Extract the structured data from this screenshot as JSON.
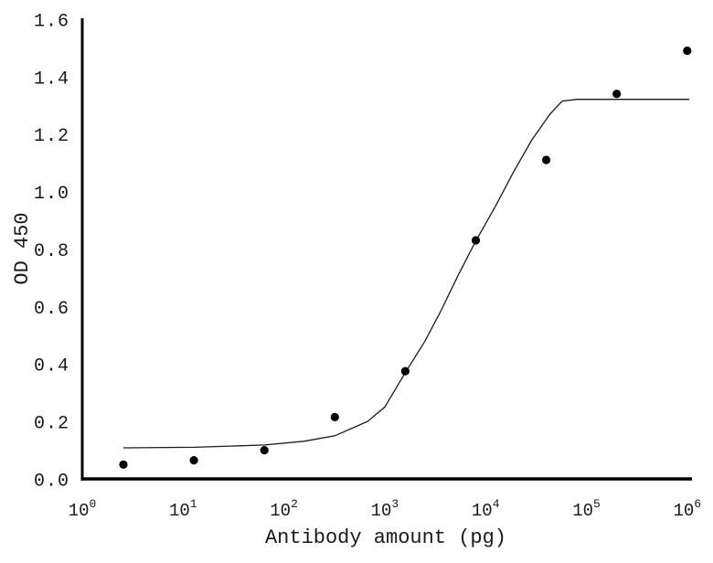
{
  "chart_data": {
    "type": "scatter",
    "title": "",
    "xlabel": "Antibody amount (pg)",
    "ylabel": "OD 450",
    "x_scale": "log10",
    "xlim": [
      1,
      1000000
    ],
    "ylim": [
      0,
      1.6
    ],
    "grid": false,
    "legend": "none",
    "x_ticks": [
      {
        "base": "10",
        "exp": "0",
        "value": 1
      },
      {
        "base": "10",
        "exp": "1",
        "value": 10
      },
      {
        "base": "10",
        "exp": "2",
        "value": 100
      },
      {
        "base": "10",
        "exp": "3",
        "value": 1000
      },
      {
        "base": "10",
        "exp": "4",
        "value": 10000
      },
      {
        "base": "10",
        "exp": "5",
        "value": 100000
      },
      {
        "base": "10",
        "exp": "6",
        "value": 1000000
      }
    ],
    "y_ticks": [
      {
        "label": "0.0",
        "value": 0.0
      },
      {
        "label": "0.2",
        "value": 0.2
      },
      {
        "label": "0.4",
        "value": 0.4
      },
      {
        "label": "0.6",
        "value": 0.6
      },
      {
        "label": "0.8",
        "value": 0.8
      },
      {
        "label": "1.0",
        "value": 1.0
      },
      {
        "label": "1.2",
        "value": 1.2
      },
      {
        "label": "1.4",
        "value": 1.4
      },
      {
        "label": "1.6",
        "value": 1.6
      }
    ],
    "points": [
      [
        2.56,
        0.05
      ],
      [
        12.8,
        0.065
      ],
      [
        64,
        0.1
      ],
      [
        320,
        0.215
      ],
      [
        1600,
        0.375
      ],
      [
        8000,
        0.83
      ],
      [
        40000,
        1.11
      ],
      [
        200000,
        1.34
      ],
      [
        1000000,
        1.49
      ]
    ],
    "curve": [
      [
        2.56,
        0.108
      ],
      [
        12.8,
        0.11
      ],
      [
        64,
        0.118
      ],
      [
        158,
        0.131
      ],
      [
        320,
        0.15
      ],
      [
        676,
        0.2
      ],
      [
        1000,
        0.25
      ],
      [
        1600,
        0.37
      ],
      [
        2512,
        0.48
      ],
      [
        3548,
        0.58
      ],
      [
        5370,
        0.71
      ],
      [
        8000,
        0.828
      ],
      [
        12590,
        0.95
      ],
      [
        19050,
        1.07
      ],
      [
        28840,
        1.18
      ],
      [
        43650,
        1.27
      ],
      [
        57540,
        1.315
      ],
      [
        81280,
        1.321
      ],
      [
        1050000,
        1.321
      ]
    ],
    "curve_bottom_asymptote": 0.11,
    "curve_top_asymptote": 1.32,
    "colors": {
      "axis": "#000000",
      "points": "#000000",
      "curve": "#1a1a1a",
      "text": "#1a1a1a",
      "background": "#ffffff"
    }
  }
}
